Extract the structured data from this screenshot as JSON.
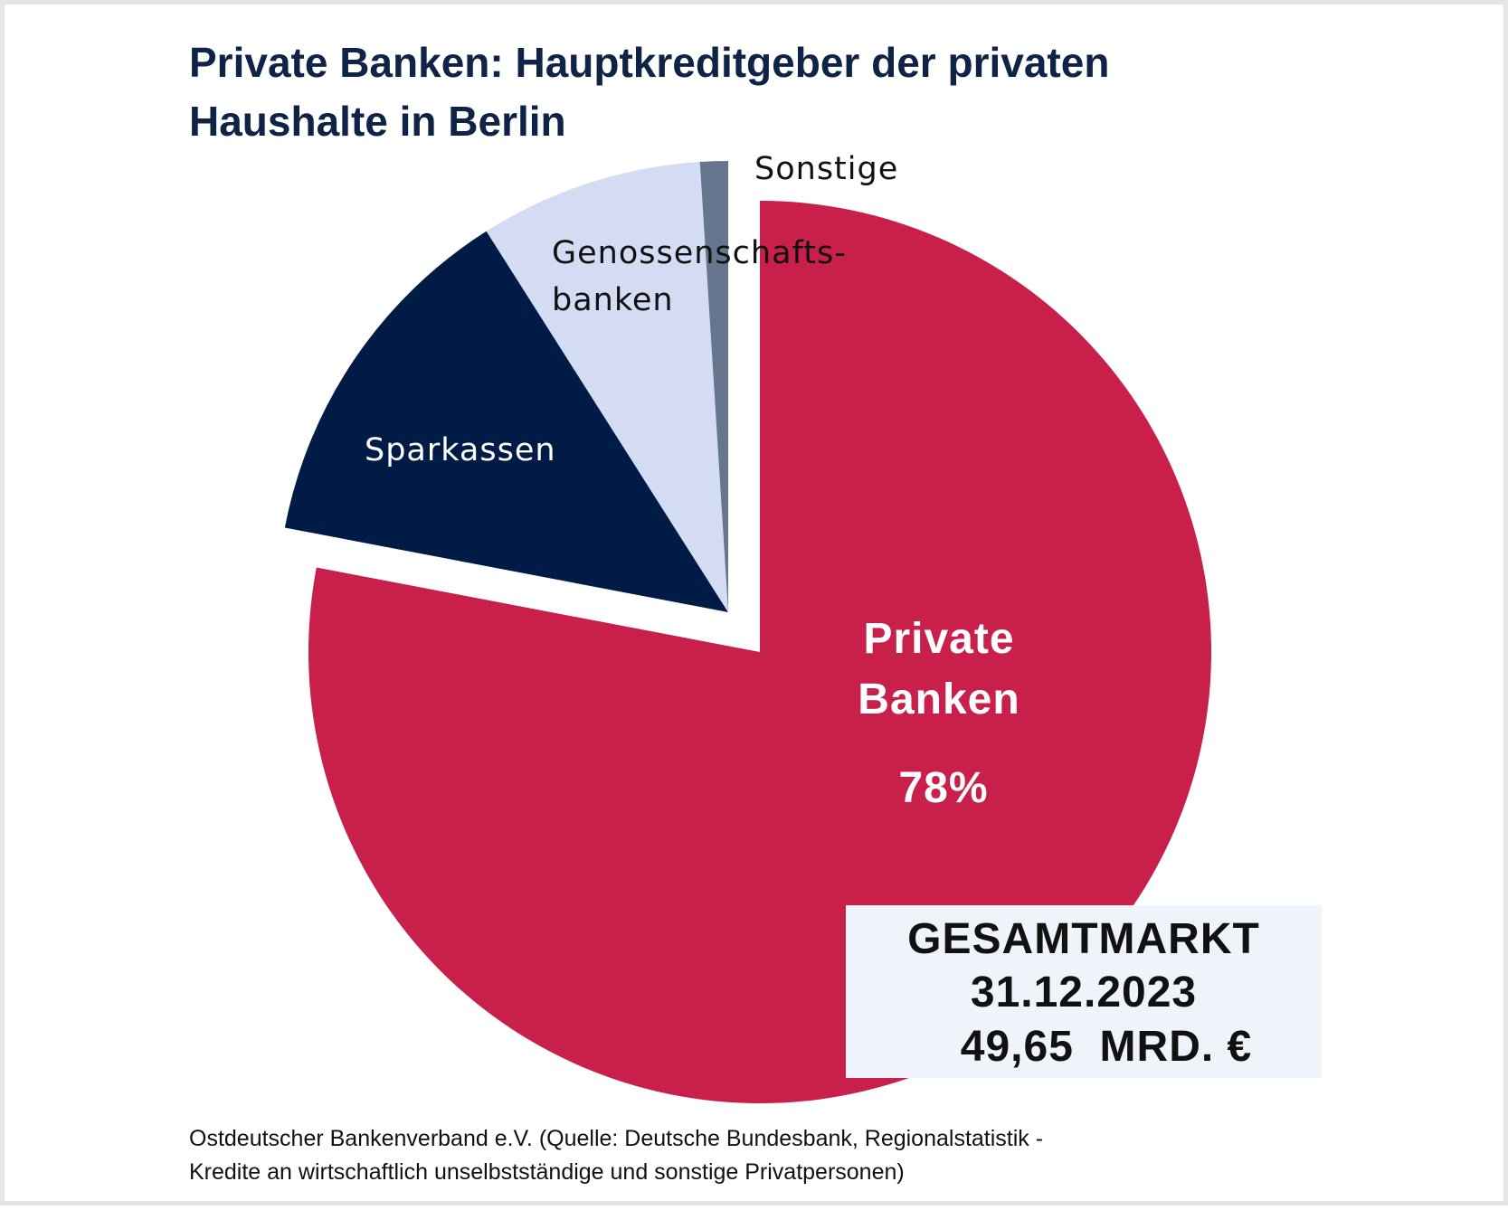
{
  "chart_data": {
    "type": "pie",
    "title": [
      "Private Banken: Hauptkreditgeber der privaten",
      "Haushalte in Berlin"
    ],
    "slices": [
      {
        "name": "Private Banken",
        "label": [
          "Private",
          "Banken"
        ],
        "value": 78,
        "value_label": "78%",
        "color": "#c8204a",
        "exploded": false
      },
      {
        "name": "Sparkassen",
        "label": [
          "Sparkassen"
        ],
        "value": 13,
        "color": "#001c46",
        "exploded": true
      },
      {
        "name": "Genossenschaftsbanken",
        "label": [
          "Genossenschafts-",
          "banken"
        ],
        "value": 8,
        "color": "#d3dcf3",
        "exploded": true
      },
      {
        "name": "Sonstige",
        "label": [
          "Sonstige"
        ],
        "value": 1,
        "color": "#66768f",
        "exploded": true
      }
    ],
    "annotation": [
      "GESAMTMARKT",
      "31.12.2023",
      "49,65  MRD. €"
    ],
    "footer": [
      "Ostdeutscher Bankenverband e.V. (Quelle: Deutsche Bundesbank, Regionalstatistik -",
      "Kredite an wirtschaftlich unselbstständige und sonstige Privatpersonen)"
    ]
  }
}
